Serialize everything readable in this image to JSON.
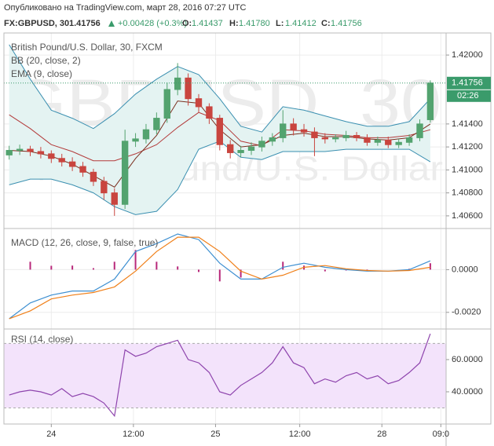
{
  "header": {
    "published": "Опубликовано на TradingView.com, март 28, 2016 07:27 UTC",
    "symbol": "FX:GBPUSD, 30",
    "change": "+0.00428 (+0.3%)",
    "ohlc": [
      {
        "key": "O:",
        "value": "1.41437"
      },
      {
        "key": "H:",
        "value": "1.41780"
      },
      {
        "key": "L:",
        "value": "1.41412"
      },
      {
        "key": "C:",
        "value": "1.41756"
      }
    ]
  },
  "chart_data": [
    {
      "type": "candlestick",
      "title": "British Pound/U.S. Dollar, 30, FXCM",
      "watermark": "GBPUSD, 30",
      "watermark_subtitle": "British Pound/U.S. Dollar",
      "x": [
        0,
        1,
        2,
        3,
        4,
        5,
        6,
        7,
        8,
        9,
        10,
        11,
        12,
        13,
        14,
        15,
        16,
        17,
        18,
        19,
        20,
        21,
        22,
        23,
        24,
        25,
        26,
        27,
        28,
        29,
        30,
        31,
        32,
        33,
        34,
        35,
        36,
        37,
        38,
        39,
        40
      ],
      "open": [
        1.4113,
        1.4117,
        1.4118,
        1.4116,
        1.4114,
        1.411,
        1.4107,
        1.4103,
        1.4098,
        1.409,
        1.408,
        1.407,
        1.4125,
        1.4127,
        1.4135,
        1.4145,
        1.417,
        1.418,
        1.4162,
        1.4155,
        1.4145,
        1.4122,
        1.4115,
        1.4117,
        1.412,
        1.4125,
        1.4128,
        1.414,
        1.4135,
        1.4133,
        1.4128,
        1.4127,
        1.4128,
        1.413,
        1.4128,
        1.4124,
        1.4126,
        1.4122,
        1.4124,
        1.4128,
        1.41437
      ],
      "high": [
        1.4121,
        1.4122,
        1.4121,
        1.412,
        1.4117,
        1.4114,
        1.4111,
        1.4107,
        1.4101,
        1.4094,
        1.4084,
        1.4135,
        1.4132,
        1.414,
        1.415,
        1.4176,
        1.4193,
        1.4184,
        1.4166,
        1.4158,
        1.4148,
        1.4126,
        1.4121,
        1.4124,
        1.4129,
        1.4132,
        1.4152,
        1.4145,
        1.414,
        1.4137,
        1.4132,
        1.4131,
        1.4134,
        1.4133,
        1.4131,
        1.4129,
        1.4129,
        1.4127,
        1.4131,
        1.4144,
        1.4178
      ],
      "low": [
        1.4109,
        1.4113,
        1.4112,
        1.411,
        1.4106,
        1.4103,
        1.4099,
        1.4094,
        1.4086,
        1.4074,
        1.406,
        1.4066,
        1.412,
        1.4123,
        1.4131,
        1.4141,
        1.4165,
        1.4156,
        1.415,
        1.414,
        1.4117,
        1.411,
        1.4111,
        1.4113,
        1.4116,
        1.4121,
        1.4124,
        1.413,
        1.4129,
        1.4112,
        1.4123,
        1.4124,
        1.4125,
        1.4125,
        1.4121,
        1.4121,
        1.4119,
        1.4119,
        1.4121,
        1.4125,
        1.41412
      ],
      "close": [
        1.4117,
        1.4118,
        1.4116,
        1.4114,
        1.411,
        1.4107,
        1.4103,
        1.4098,
        1.409,
        1.408,
        1.407,
        1.4125,
        1.4127,
        1.4135,
        1.4145,
        1.417,
        1.418,
        1.4162,
        1.4155,
        1.4145,
        1.4122,
        1.4115,
        1.4117,
        1.412,
        1.4125,
        1.4128,
        1.414,
        1.4135,
        1.4133,
        1.4128,
        1.4127,
        1.4128,
        1.413,
        1.4128,
        1.4124,
        1.4126,
        1.4122,
        1.4124,
        1.4128,
        1.414,
        1.41756
      ],
      "up_color": "#53a36f",
      "down_color": "#c9453f",
      "ylim": [
        1.4049,
        1.42192
      ],
      "yticks": [
        {
          "value": 1.406,
          "label": "1.40600"
        },
        {
          "value": 1.408,
          "label": "1.40800"
        },
        {
          "value": 1.41,
          "label": "1.41000"
        },
        {
          "value": 1.412,
          "label": "1.41200"
        },
        {
          "value": 1.414,
          "label": "1.41400"
        },
        {
          "value": 1.42,
          "label": "1.42000"
        }
      ],
      "grid": true,
      "last_price": {
        "value": 1.41756,
        "label": "1.41756"
      },
      "countdown": "02:26",
      "last_color": "#3a9b6b",
      "bb": {
        "name": "BB (20, close, 2)",
        "x": [
          0,
          2,
          4,
          6,
          8,
          10,
          12,
          14,
          16,
          18,
          20,
          22,
          24,
          26,
          28,
          30,
          32,
          34,
          36,
          38,
          40
        ],
        "upper": [
          1.4209,
          1.4179,
          1.4152,
          1.4145,
          1.4136,
          1.4149,
          1.4166,
          1.4179,
          1.419,
          1.4183,
          1.4162,
          1.4138,
          1.4133,
          1.4155,
          1.4152,
          1.4147,
          1.4142,
          1.4138,
          1.4138,
          1.4142,
          1.4162
        ],
        "lower": [
          1.4087,
          1.4092,
          1.4092,
          1.4087,
          1.408,
          1.4068,
          1.4061,
          1.4064,
          1.4083,
          1.4118,
          1.4125,
          1.4111,
          1.4109,
          1.4116,
          1.4116,
          1.4116,
          1.4118,
          1.4118,
          1.4118,
          1.4118,
          1.4107
        ],
        "basis": [
          1.4148,
          1.4136,
          1.4122,
          1.4116,
          1.4108,
          1.4108,
          1.4114,
          1.4122,
          1.4137,
          1.415,
          1.4143,
          1.4125,
          1.4121,
          1.4135,
          1.4134,
          1.4131,
          1.413,
          1.4128,
          1.4128,
          1.413,
          1.4135
        ],
        "color": "#3a8fb0",
        "basis_color": "#b33a3a",
        "fill": "#e4f3f2"
      },
      "ema": {
        "name": "EMA (9, close)",
        "x": [
          0,
          2,
          4,
          6,
          8,
          10,
          12,
          14,
          16,
          18,
          20,
          22,
          24,
          26,
          28,
          30,
          32,
          34,
          36,
          38,
          40
        ],
        "values": [
          1.4117,
          1.4116,
          1.4112,
          1.4105,
          1.4095,
          1.4085,
          1.411,
          1.413,
          1.416,
          1.4158,
          1.4135,
          1.412,
          1.4122,
          1.413,
          1.4132,
          1.4129,
          1.4129,
          1.4127,
          1.4126,
          1.4128,
          1.414
        ],
        "color": "#7a2e1e"
      }
    },
    {
      "type": "macd",
      "title": "MACD (12, 26, close, 9, false, true)",
      "x": [
        0,
        2,
        4,
        6,
        8,
        10,
        12,
        14,
        16,
        18,
        20,
        22,
        24,
        26,
        28,
        30,
        32,
        34,
        36,
        38,
        40
      ],
      "macd_line": {
        "color": "#3d8fd1",
        "values": [
          -0.0023,
          -0.00156,
          -0.00119,
          -0.001,
          -0.001,
          -0.00044,
          0.00085,
          0.00122,
          0.00167,
          0.00141,
          0.0003,
          -0.00044,
          -0.00044,
          0.00011,
          0.0003,
          0.00011,
          0,
          -7e-05,
          -7e-05,
          0,
          0.00041
        ]
      },
      "signal_line": {
        "color": "#f0801a",
        "values": [
          -0.0023,
          -0.00193,
          -0.00137,
          -0.00119,
          -0.00107,
          -0.00081,
          -7e-05,
          0.00085,
          0.00152,
          0.00152,
          0.00085,
          -7e-05,
          -0.00044,
          -0.00026,
          0.00011,
          0.00019,
          4e-05,
          -4e-05,
          -7e-05,
          -4e-05,
          0.00011
        ]
      },
      "histogram": {
        "color": "#b8287a",
        "values": [
          0,
          0.00037,
          0.00018,
          0.00019,
          7e-05,
          0.00037,
          0.00092,
          0.00037,
          0.00015,
          -0.00011,
          -0.00055,
          -0.00037,
          0,
          0.00037,
          0.00019,
          -8e-05,
          -4e-05,
          -3e-05,
          0,
          4e-05,
          0.0003
        ]
      },
      "ylim": [
        -0.00278,
        0.00189
      ],
      "yticks": [
        {
          "value": -0.002,
          "label": "-0.0020"
        },
        {
          "value": 0,
          "label": "0.0000"
        }
      ]
    },
    {
      "type": "line",
      "title": "RSI (14, close)",
      "x": [
        0,
        1,
        2,
        3,
        4,
        5,
        6,
        7,
        8,
        9,
        10,
        11,
        12,
        13,
        14,
        15,
        16,
        17,
        18,
        19,
        20,
        21,
        22,
        23,
        24,
        25,
        26,
        27,
        28,
        29,
        30,
        31,
        32,
        33,
        34,
        35,
        36,
        37,
        38,
        39,
        40
      ],
      "values": [
        38,
        40,
        41,
        40,
        38,
        42,
        37,
        39,
        37,
        33,
        25,
        66,
        62,
        64,
        68,
        70,
        72,
        60,
        58,
        52,
        40,
        38,
        44,
        48,
        52,
        58,
        68,
        58,
        55,
        45,
        48,
        46,
        50,
        52,
        48,
        50,
        45,
        47,
        52,
        58,
        76
      ],
      "color": "#8e44ad",
      "band": [
        30,
        70
      ],
      "band_color": "#f3e3fb",
      "ylim": [
        20,
        78.5
      ],
      "yticks": [
        {
          "value": 40,
          "label": "40.0000"
        },
        {
          "value": 60,
          "label": "60.0000"
        }
      ],
      "xlim": [
        -0.5,
        41.5
      ],
      "xticks": [
        {
          "value": 4,
          "label": "24"
        },
        {
          "value": 11.8,
          "label": "12:00"
        },
        {
          "value": 19.6,
          "label": "25"
        },
        {
          "value": 27.6,
          "label": "12:00"
        },
        {
          "value": 35.4,
          "label": "28"
        },
        {
          "value": 41,
          "label": "09:0"
        }
      ]
    }
  ]
}
